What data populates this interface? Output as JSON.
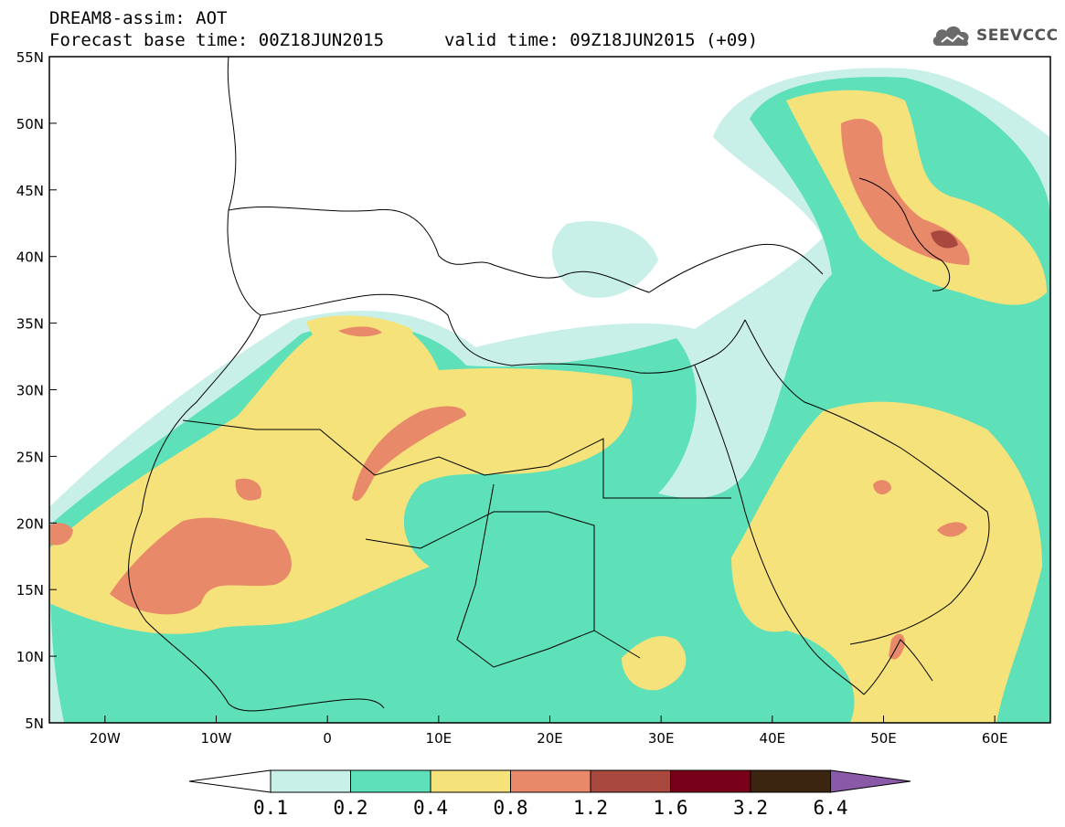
{
  "header": {
    "title": "DREAM8-assim: AOT",
    "forecast": "Forecast base time: 00Z18JUN2015",
    "valid": "valid time: 09Z18JUN2015 (+09)"
  },
  "logo": {
    "text": "SEEVCCC",
    "icon": "cloud-logo-icon"
  },
  "map": {
    "variable": "AOT",
    "lon_range": [
      -25,
      65
    ],
    "lat_range": [
      5,
      55
    ],
    "lat_ticks": [
      "5N",
      "10N",
      "15N",
      "20N",
      "25N",
      "30N",
      "35N",
      "40N",
      "45N",
      "50N",
      "55N"
    ],
    "lon_ticks": [
      "20W",
      "10W",
      "0",
      "10E",
      "20E",
      "30E",
      "40E",
      "50E",
      "60E"
    ]
  },
  "legend": {
    "levels": [
      "0.1",
      "0.2",
      "0.4",
      "0.8",
      "1.2",
      "1.6",
      "3.2",
      "6.4"
    ],
    "colors": [
      "#c8f0e8",
      "#5ee0b8",
      "#f6e27a",
      "#e8896a",
      "#a8483e",
      "#780018",
      "#3c2510",
      "#8a5aa8"
    ]
  }
}
